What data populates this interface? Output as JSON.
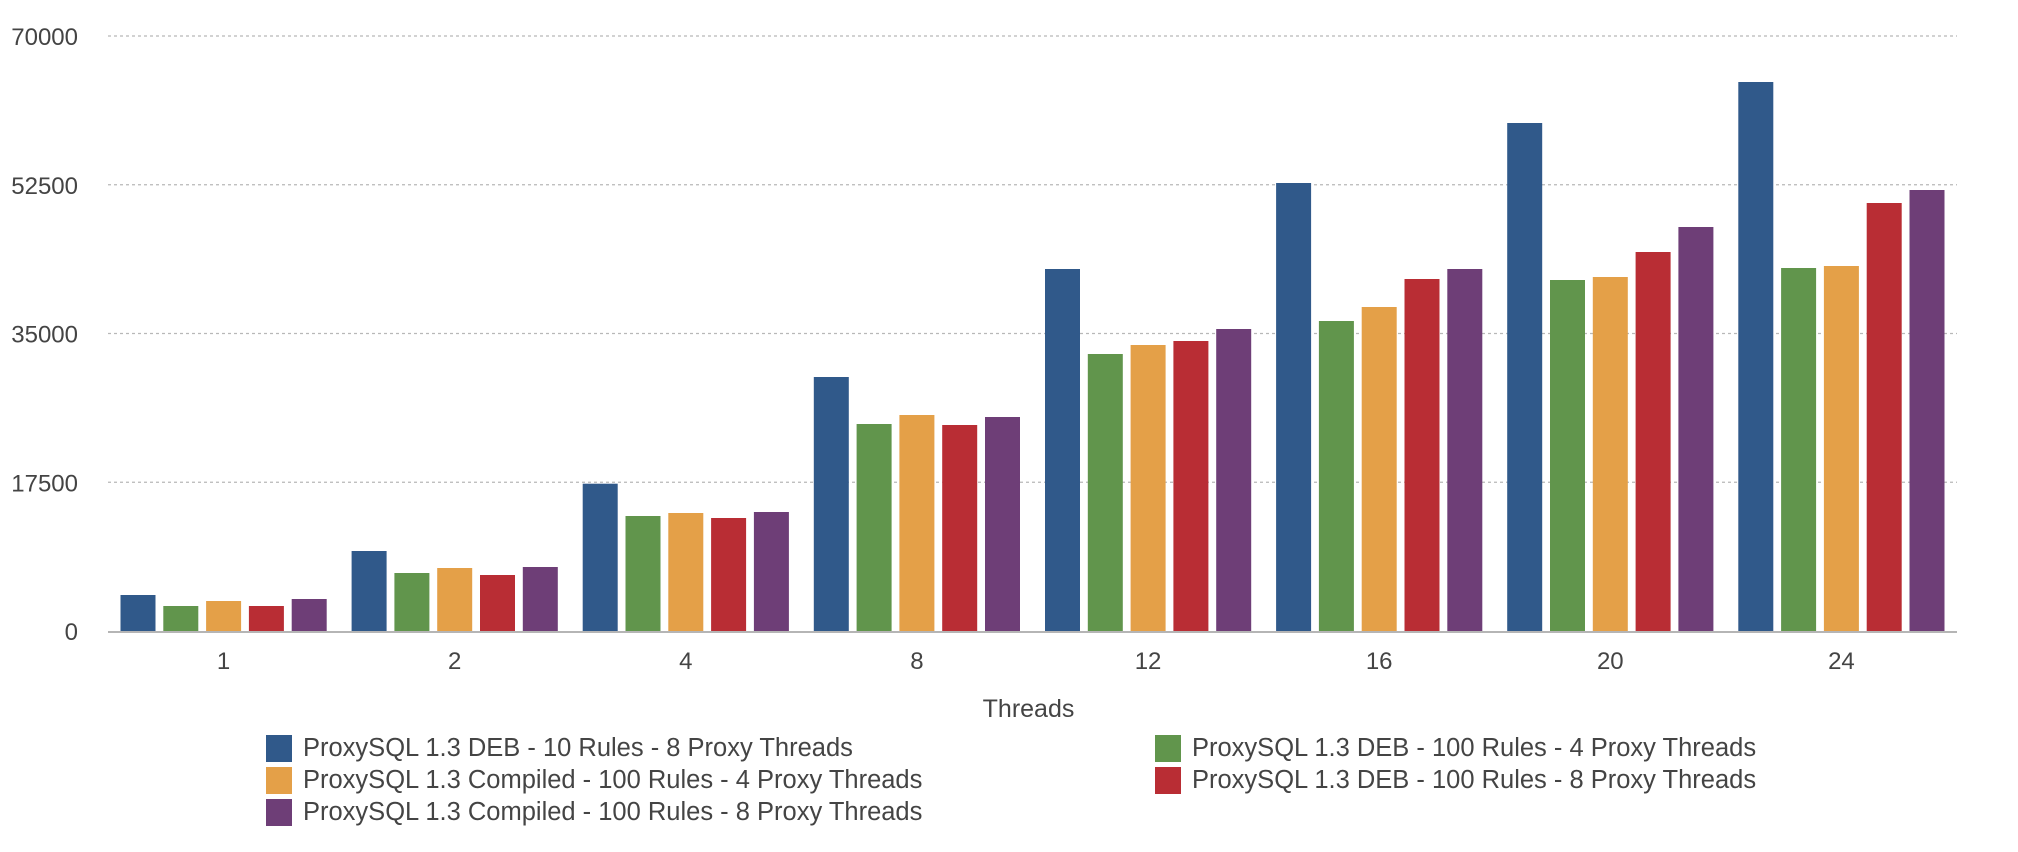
{
  "chart_data": {
    "type": "bar",
    "title": "",
    "xlabel": "Threads",
    "ylabel": "",
    "ylim": [
      0,
      70000
    ],
    "yticks": [
      "0",
      "17500",
      "35000",
      "52500",
      "70000"
    ],
    "ytick_values": [
      0,
      17500,
      35000,
      52500,
      70000
    ],
    "grid": true,
    "legend_position": "bottom",
    "categories": [
      "1",
      "2",
      "4",
      "8",
      "12",
      "16",
      "20",
      "24"
    ],
    "series": [
      {
        "name": "ProxySQL 1.3 DEB - 10 Rules - 8 Proxy Threads",
        "color": "#30598a",
        "values": [
          4230,
          9410,
          17330,
          29880,
          42590,
          52710,
          59760,
          64590
        ]
      },
      {
        "name": "ProxySQL 1.3 DEB - 100 Rules - 4 Proxy Threads",
        "color": "#61954c",
        "values": [
          2940,
          6820,
          13530,
          24350,
          32590,
          36470,
          41290,
          42710
        ]
      },
      {
        "name": "ProxySQL 1.3 Compiled - 100 Rules - 4 Proxy Threads",
        "color": "#e4a048",
        "values": [
          3530,
          7410,
          13880,
          25410,
          33650,
          38120,
          41650,
          42940
        ]
      },
      {
        "name": "ProxySQL 1.3 DEB - 100 Rules - 8 Proxy Threads",
        "color": "#b92d34",
        "values": [
          2940,
          6590,
          13290,
          24240,
          34120,
          41410,
          44590,
          50350
        ]
      },
      {
        "name": "ProxySQL 1.3 Compiled - 100 Rules - 8 Proxy Threads",
        "color": "#6e3e77",
        "values": [
          3760,
          7530,
          14000,
          25180,
          35530,
          42590,
          47530,
          51880
        ]
      }
    ]
  },
  "legend_order": [
    0,
    1,
    2,
    3,
    4
  ]
}
